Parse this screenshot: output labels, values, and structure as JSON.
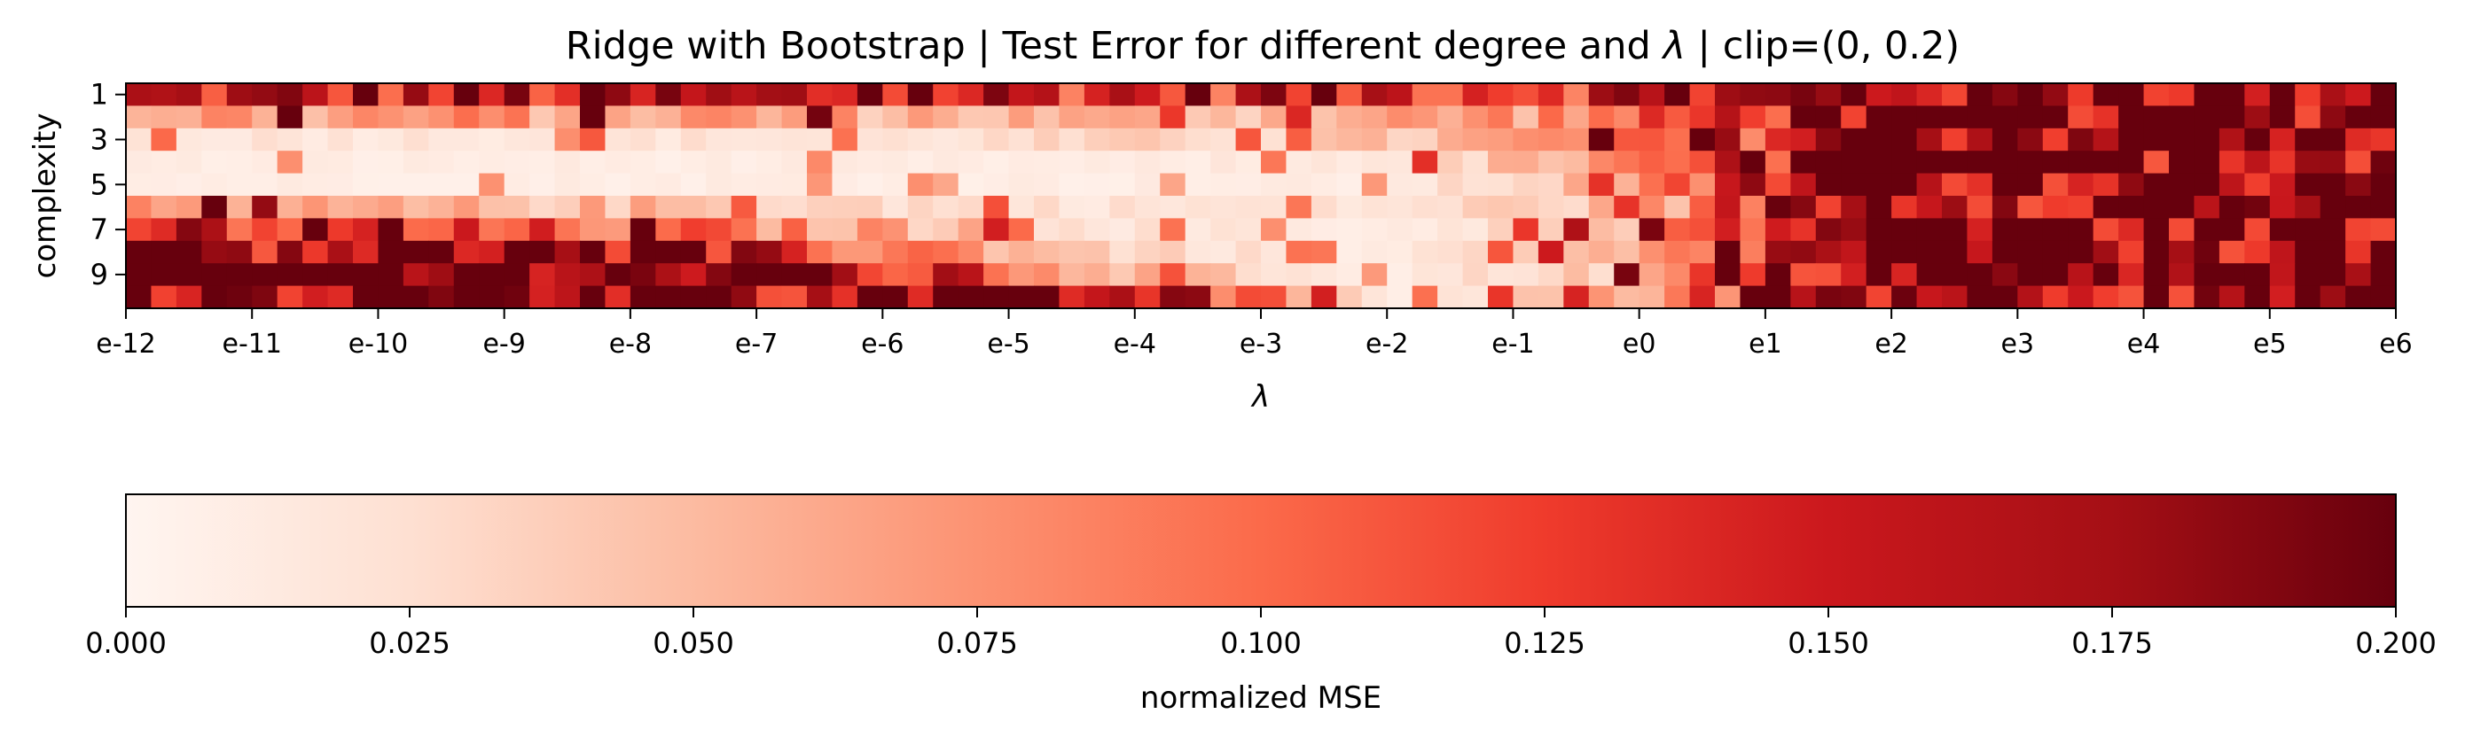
{
  "chart_data": {
    "type": "heatmap",
    "title_main": "Ridge with Bootstrap | Test Error for different degree and ",
    "title_lambda": "λ",
    "title_tail": " | clip=(0, 0.2)",
    "xlabel": "λ",
    "ylabel": "complexity",
    "x_scale": "log",
    "x_range": [
      "e-12",
      "e6"
    ],
    "x_tick_labels": [
      "e-12",
      "e-11",
      "e-10",
      "e-9",
      "e-8",
      "e-7",
      "e-6",
      "e-5",
      "e-4",
      "e-3",
      "e-2",
      "e-1",
      "e0",
      "e1",
      "e2",
      "e3",
      "e4",
      "e5",
      "e6"
    ],
    "y_tick_labels": [
      "1",
      "3",
      "5",
      "7",
      "9"
    ],
    "degrees": [
      1,
      2,
      3,
      4,
      5,
      6,
      7,
      8,
      9,
      10
    ],
    "n_lambda": 90,
    "row_base_error": [
      [
        0.15,
        0.15,
        0.15,
        0.15,
        0.15,
        0.15,
        0.15,
        0.16,
        0.18,
        0.2
      ],
      [
        0.07,
        0.07,
        0.07,
        0.06,
        0.05,
        0.06,
        0.09,
        0.16,
        0.2,
        0.2
      ],
      [
        0.02,
        0.02,
        0.02,
        0.02,
        0.03,
        0.04,
        0.08,
        0.15,
        0.2,
        0.2
      ],
      [
        0.01,
        0.01,
        0.01,
        0.01,
        0.01,
        0.02,
        0.07,
        0.15,
        0.2,
        0.2
      ],
      [
        0.01,
        0.01,
        0.01,
        0.01,
        0.01,
        0.01,
        0.06,
        0.15,
        0.2,
        0.2
      ],
      [
        0.06,
        0.05,
        0.05,
        0.03,
        0.02,
        0.02,
        0.05,
        0.14,
        0.2,
        0.2
      ],
      [
        0.15,
        0.11,
        0.1,
        0.06,
        0.02,
        0.01,
        0.05,
        0.14,
        0.2,
        0.2
      ],
      [
        0.2,
        0.19,
        0.16,
        0.1,
        0.03,
        0.01,
        0.05,
        0.14,
        0.2,
        0.2
      ],
      [
        0.2,
        0.2,
        0.2,
        0.15,
        0.05,
        0.01,
        0.05,
        0.14,
        0.2,
        0.2
      ],
      [
        0.2,
        0.2,
        0.2,
        0.19,
        0.17,
        0.01,
        0.06,
        0.15,
        0.2,
        0.2
      ]
    ],
    "base_lambda_exponents": [
      -12,
      -10,
      -8,
      -6,
      -4,
      -2,
      0,
      1,
      2,
      6
    ],
    "clip": [
      0,
      0.2
    ],
    "colorbar": {
      "label": "normalized MSE",
      "min": 0,
      "max": 0.2,
      "tick_labels": [
        "0.000",
        "0.025",
        "0.050",
        "0.075",
        "0.100",
        "0.125",
        "0.150",
        "0.175",
        "0.200"
      ],
      "colors": [
        "#fff5f0",
        "#fee0d2",
        "#fcbba1",
        "#fc9272",
        "#fb6a4a",
        "#ef3b2c",
        "#cb181d",
        "#a50f15",
        "#67000d"
      ]
    }
  }
}
